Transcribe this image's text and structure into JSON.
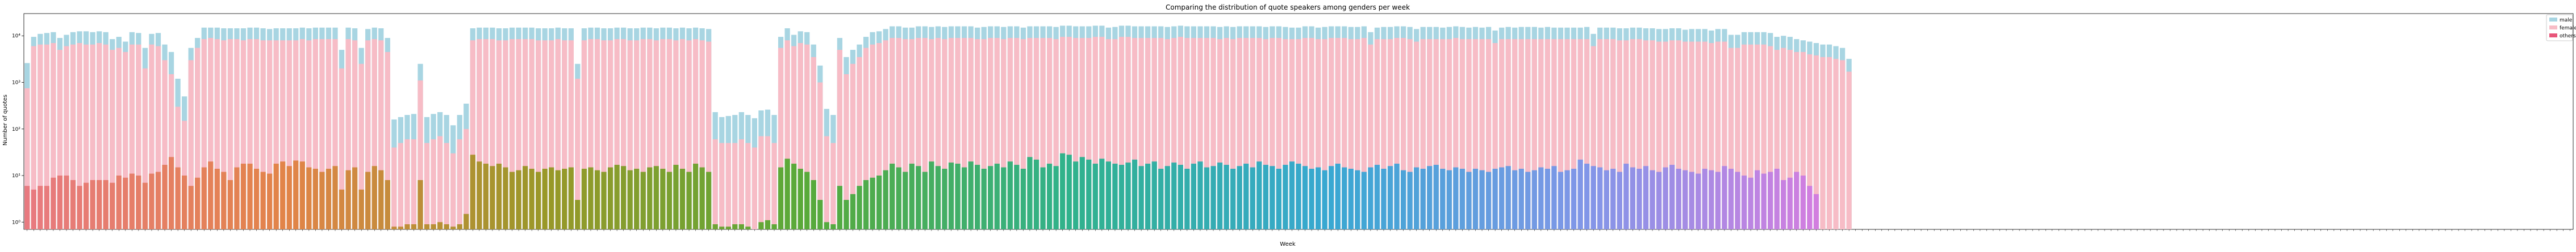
{
  "chart_data": {
    "type": "bar",
    "title": "Comparing the distribution of quote speakers among genders per week",
    "xlabel": "Week",
    "ylabel": "Number of quotes",
    "yscale": "log",
    "ylim": [
      0.7,
      30000
    ],
    "yticks": [
      {
        "value": 1,
        "label": "10⁰"
      },
      {
        "value": 10,
        "label": "10¹"
      },
      {
        "value": 100,
        "label": "10²"
      },
      {
        "value": 1000,
        "label": "10³"
      },
      {
        "value": 10000,
        "label": "10⁴"
      }
    ],
    "x_tick_labels_legible": false,
    "stacked": false,
    "legend": {
      "placement": "top-right",
      "entries": [
        "male",
        "female",
        "others"
      ]
    },
    "colors": {
      "male": "#a8d5e2",
      "female": "#f7bcc6",
      "others_palette": "husl gradient: red → orange → olive → green → teal → blue → magenta"
    },
    "series": [
      {
        "name": "male",
        "values": [
          2600,
          9500,
          11000,
          11500,
          12000,
          9000,
          10500,
          12000,
          12500,
          12500,
          12000,
          12500,
          12000,
          8500,
          9500,
          7500,
          12000,
          11500,
          5500,
          11000,
          11500,
          6500,
          4500,
          1200,
          500,
          5500,
          9000,
          15000,
          15000,
          15000,
          14500,
          14500,
          14500,
          14500,
          15000,
          15000,
          14500,
          14000,
          14500,
          14500,
          14500,
          14500,
          15000,
          14500,
          15000,
          15000,
          15000,
          15000,
          5000,
          15000,
          14500,
          5500,
          14000,
          15000,
          14500,
          9000,
          160,
          180,
          200,
          210,
          2500,
          180,
          210,
          230,
          200,
          120,
          200,
          350,
          14500,
          15000,
          15000,
          15000,
          14500,
          14500,
          15000,
          15000,
          15000,
          15000,
          14500,
          14500,
          14500,
          15000,
          14500,
          14500,
          2500,
          14500,
          15000,
          15000,
          14500,
          14500,
          15000,
          15000,
          14500,
          14500,
          15000,
          15000,
          14500,
          15000,
          15000,
          14500,
          15000,
          14500,
          15000,
          14500,
          14000,
          230,
          180,
          190,
          200,
          230,
          200,
          170,
          250,
          260,
          200,
          9500,
          14500,
          10500,
          12500,
          12000,
          6500,
          2300,
          270,
          200,
          9000,
          3500,
          5000,
          6500,
          9500,
          12000,
          12500,
          14000,
          16000,
          16000,
          15000,
          15000,
          16000,
          16000,
          15500,
          16000,
          15500,
          16000,
          16000,
          16000,
          16000,
          15000,
          15500,
          16000,
          16000,
          15500,
          16000,
          16000,
          15000,
          16000,
          16000,
          16000,
          16000,
          15500,
          16500,
          16500,
          16000,
          16000,
          16000,
          16500,
          16500,
          15000,
          15500,
          16500,
          16500,
          16000,
          16000,
          16000,
          16000,
          16000,
          15500,
          16000,
          16500,
          16000,
          16000,
          16000,
          16000,
          16000,
          15500,
          16000,
          15500,
          16000,
          16000,
          16000,
          16000,
          15500,
          16000,
          16000,
          15500,
          15000,
          15000,
          16000,
          16000,
          15000,
          15500,
          16000,
          16000,
          16000,
          15500,
          15500,
          16000,
          12000,
          15000,
          15500,
          15500,
          16000,
          16000,
          15500,
          14000,
          15500,
          15500,
          15500,
          15000,
          15500,
          16000,
          15500,
          15000,
          15500,
          15000,
          15500,
          13000,
          15000,
          15500,
          15000,
          15500,
          15500,
          15500,
          15000,
          15500,
          15000,
          15000,
          15000,
          15000,
          15000,
          15500,
          11000,
          15000,
          15000,
          15000,
          14500,
          14500,
          15000,
          15000,
          14500,
          14500,
          14000,
          14000,
          14500,
          14500,
          13500,
          14000,
          14000,
          14000,
          13000,
          14000,
          14000,
          10500,
          10500,
          12000,
          12000,
          12000,
          12000,
          11500,
          9500,
          10000,
          9500,
          8500,
          8000,
          7500,
          7000,
          6500,
          6500,
          6000,
          5500,
          3200
        ]
      },
      {
        "name": "female",
        "values": [
          750,
          6000,
          6500,
          6500,
          7000,
          5000,
          6000,
          6500,
          7000,
          6500,
          6500,
          7000,
          6500,
          5000,
          5500,
          4500,
          6500,
          6500,
          2000,
          6500,
          6000,
          3000,
          1500,
          300,
          150,
          3000,
          5500,
          8500,
          9000,
          8500,
          8000,
          8500,
          8500,
          8000,
          8500,
          8500,
          8000,
          8000,
          8000,
          8000,
          8000,
          8000,
          8500,
          8000,
          8500,
          8500,
          8500,
          8500,
          2000,
          8500,
          8000,
          2500,
          8000,
          8500,
          8000,
          4500,
          40,
          50,
          60,
          60,
          1100,
          50,
          60,
          70,
          50,
          30,
          60,
          100,
          8000,
          8500,
          8500,
          8500,
          8000,
          8000,
          8500,
          8500,
          8500,
          8500,
          8000,
          8000,
          8000,
          8500,
          8000,
          8000,
          1200,
          8000,
          8500,
          8500,
          8000,
          8000,
          8500,
          8500,
          8000,
          8000,
          8500,
          8500,
          8000,
          8500,
          8500,
          8000,
          8500,
          8000,
          8500,
          8000,
          7500,
          60,
          50,
          50,
          50,
          60,
          50,
          40,
          70,
          70,
          50,
          5500,
          8000,
          6000,
          7000,
          6500,
          3500,
          1000,
          70,
          50,
          5000,
          1500,
          2500,
          3500,
          5500,
          6500,
          7000,
          8000,
          9000,
          9000,
          8500,
          8500,
          9000,
          9000,
          8500,
          9000,
          8500,
          9000,
          9000,
          9000,
          9000,
          8500,
          8500,
          9000,
          9000,
          8500,
          9000,
          9000,
          8500,
          9000,
          9000,
          9000,
          9000,
          8500,
          9500,
          9500,
          9000,
          9000,
          9000,
          9500,
          9500,
          8500,
          8500,
          9500,
          9500,
          9000,
          9000,
          9000,
          9000,
          9000,
          8500,
          9000,
          9500,
          9000,
          9000,
          9000,
          9000,
          9000,
          8500,
          9000,
          8500,
          9000,
          9000,
          9000,
          9000,
          8500,
          9000,
          9000,
          8500,
          8500,
          8500,
          9000,
          9000,
          8500,
          8500,
          9000,
          9000,
          9000,
          8500,
          8500,
          9000,
          6500,
          8500,
          8500,
          8500,
          9000,
          9000,
          8500,
          7500,
          8500,
          8500,
          8500,
          8500,
          8500,
          9000,
          8500,
          8500,
          8500,
          8500,
          8500,
          7000,
          8500,
          8500,
          8500,
          8500,
          8500,
          8500,
          8500,
          8500,
          8500,
          8500,
          8500,
          8500,
          8500,
          8500,
          6000,
          8500,
          8500,
          8500,
          8000,
          8000,
          8500,
          8500,
          8000,
          8000,
          7500,
          7500,
          8000,
          8000,
          7500,
          7500,
          7500,
          7500,
          7000,
          7500,
          7500,
          5500,
          5500,
          6500,
          6500,
          6500,
          6500,
          6000,
          5000,
          5500,
          5000,
          4500,
          4500,
          4000,
          3800,
          3500,
          3500,
          3200,
          3000,
          1700
        ]
      },
      {
        "name": "others",
        "values": [
          6,
          5,
          6,
          6,
          9,
          10,
          10,
          8,
          6,
          7,
          8,
          8,
          8,
          7,
          10,
          9,
          11,
          10,
          7,
          11,
          12,
          17,
          25,
          15,
          10,
          6,
          9,
          15,
          20,
          14,
          12,
          8,
          15,
          18,
          18,
          14,
          12,
          11,
          18,
          20,
          16,
          21,
          20,
          15,
          14,
          12,
          14,
          16,
          5,
          13,
          15,
          5,
          12,
          16,
          13,
          8,
          0.8,
          0.8,
          0.9,
          0.9,
          8,
          0.9,
          0.9,
          1,
          0.9,
          0.8,
          0.9,
          1.5,
          28,
          20,
          18,
          16,
          18,
          15,
          12,
          13,
          16,
          14,
          12,
          14,
          15,
          13,
          14,
          15,
          3,
          14,
          15,
          13,
          12,
          15,
          17,
          16,
          13,
          14,
          12,
          15,
          16,
          14,
          12,
          17,
          14,
          12,
          18,
          15,
          12,
          0.9,
          0.8,
          0.8,
          0.9,
          0.9,
          0.8,
          0.7,
          1,
          1.1,
          0.9,
          15,
          23,
          18,
          14,
          12,
          8,
          3,
          1,
          0.9,
          6,
          3,
          4,
          6,
          8,
          9,
          10,
          13,
          18,
          15,
          12,
          18,
          16,
          12,
          20,
          16,
          14,
          19,
          18,
          15,
          20,
          17,
          14,
          16,
          18,
          15,
          20,
          17,
          14,
          25,
          22,
          15,
          18,
          16,
          30,
          28,
          20,
          25,
          22,
          18,
          23,
          20,
          18,
          17,
          19,
          22,
          16,
          18,
          20,
          14,
          16,
          19,
          17,
          14,
          18,
          20,
          15,
          16,
          19,
          17,
          14,
          16,
          18,
          15,
          20,
          17,
          16,
          14,
          17,
          20,
          18,
          16,
          14,
          15,
          13,
          16,
          18,
          15,
          14,
          13,
          12,
          15,
          17,
          14,
          16,
          18,
          13,
          12,
          15,
          14,
          16,
          17,
          14,
          13,
          15,
          14,
          12,
          14,
          13,
          12,
          14,
          15,
          16,
          13,
          14,
          12,
          13,
          15,
          14,
          16,
          12,
          13,
          14,
          22,
          18,
          16,
          15,
          13,
          14,
          12,
          18,
          15,
          14,
          16,
          13,
          12,
          15,
          17,
          14,
          13,
          12,
          11,
          14,
          13,
          12,
          16,
          14,
          12,
          10,
          9,
          13,
          11,
          12,
          14,
          8,
          9,
          12,
          10,
          6,
          4
        ]
      }
    ]
  }
}
